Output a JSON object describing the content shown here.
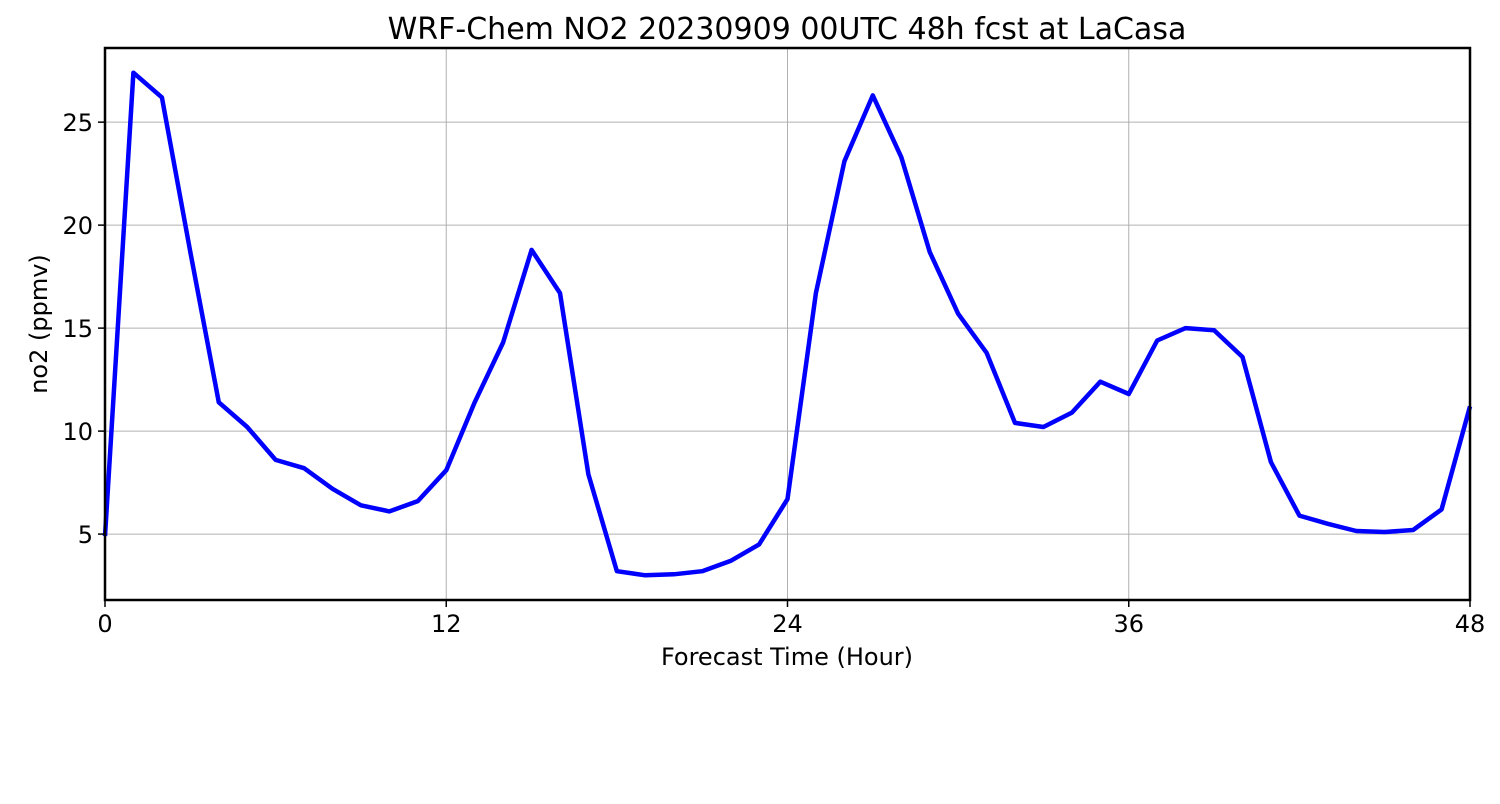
{
  "chart_data": {
    "type": "line",
    "title": "WRF-Chem NO2  20230909 00UTC 48h fcst at LaCasa",
    "xlabel": "Forecast Time (Hour)",
    "ylabel": "no2  (ppmv)",
    "xlim": [
      0,
      48
    ],
    "ylim": [
      1.8,
      28.6
    ],
    "xticks": [
      0,
      12,
      24,
      36,
      48
    ],
    "xtick_labels": [
      "0",
      "12",
      "24",
      "36",
      "48"
    ],
    "yticks": [
      5,
      10,
      15,
      20,
      25
    ],
    "ytick_labels": [
      "5",
      "10",
      "15",
      "20",
      "25"
    ],
    "grid": true,
    "legend": "none",
    "series": [
      {
        "color": "#0000ff",
        "x": [
          0,
          1,
          2,
          3,
          4,
          5,
          6,
          7,
          8,
          9,
          10,
          11,
          12,
          13,
          14,
          15,
          16,
          17,
          18,
          19,
          20,
          21,
          22,
          23,
          24,
          25,
          26,
          27,
          28,
          29,
          30,
          31,
          32,
          33,
          34,
          35,
          36,
          37,
          38,
          39,
          40,
          41,
          42,
          43,
          44,
          45,
          46,
          47,
          48
        ],
        "y": [
          4.9,
          27.4,
          26.2,
          18.7,
          11.4,
          10.2,
          8.6,
          8.2,
          7.2,
          6.4,
          6.1,
          6.6,
          8.1,
          11.4,
          14.3,
          18.8,
          16.7,
          7.9,
          3.2,
          3.0,
          3.05,
          3.2,
          3.7,
          4.5,
          6.7,
          16.7,
          23.1,
          26.3,
          23.3,
          18.7,
          15.7,
          13.8,
          10.4,
          10.2,
          10.9,
          12.4,
          11.8,
          14.4,
          15.0,
          14.9,
          13.6,
          8.5,
          5.9,
          5.5,
          5.15,
          5.1,
          5.2,
          6.2,
          11.2
        ]
      }
    ]
  }
}
